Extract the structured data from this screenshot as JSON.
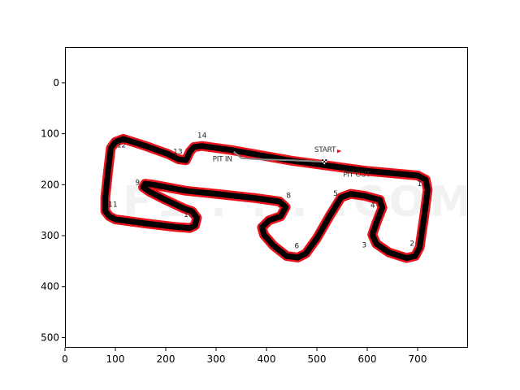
{
  "chart_data": {
    "type": "image",
    "xlim": [
      0,
      800
    ],
    "ylim": [
      520,
      -70
    ],
    "xticks": [
      "0",
      "100",
      "200",
      "300",
      "400",
      "500",
      "600",
      "700"
    ],
    "yticks": [
      "0",
      "100",
      "200",
      "300",
      "400",
      "500"
    ],
    "xtick_values": [
      0,
      100,
      200,
      300,
      400,
      500,
      600,
      700
    ],
    "ytick_values": [
      0,
      100,
      200,
      300,
      400,
      500
    ],
    "track_color": "#000000",
    "kerb_color": "#e8141c",
    "pit_lane_color": "#8a8a8a",
    "start_arrow_color": "#e8141c",
    "watermark": "F1 . . . .COM",
    "labels": {
      "start": "START",
      "pit_in": "PIT IN",
      "pit_out": "PIT OUT"
    },
    "turns": [
      {
        "label": "1",
        "x": 704,
        "y": 203
      },
      {
        "label": "2",
        "x": 689,
        "y": 320
      },
      {
        "label": "3",
        "x": 594,
        "y": 323
      },
      {
        "label": "4",
        "x": 611,
        "y": 245
      },
      {
        "label": "5",
        "x": 537,
        "y": 222
      },
      {
        "label": "6",
        "x": 460,
        "y": 325
      },
      {
        "label": "7",
        "x": 387,
        "y": 289
      },
      {
        "label": "8",
        "x": 444,
        "y": 226
      },
      {
        "label": "9",
        "x": 144,
        "y": 200
      },
      {
        "label": "10",
        "x": 245,
        "y": 263
      },
      {
        "label": "11",
        "x": 95,
        "y": 243
      },
      {
        "label": "12",
        "x": 112,
        "y": 127
      },
      {
        "label": "13",
        "x": 224,
        "y": 140
      },
      {
        "label": "14",
        "x": 272,
        "y": 108
      }
    ],
    "track": [
      [
        700,
        182
      ],
      [
        716,
        190
      ],
      [
        720,
        210
      ],
      [
        713,
        262
      ],
      [
        704,
        323
      ],
      [
        695,
        340
      ],
      [
        678,
        344
      ],
      [
        643,
        333
      ],
      [
        618,
        316
      ],
      [
        610,
        298
      ],
      [
        618,
        275
      ],
      [
        630,
        245
      ],
      [
        625,
        230
      ],
      [
        595,
        222
      ],
      [
        567,
        218
      ],
      [
        548,
        225
      ],
      [
        525,
        262
      ],
      [
        500,
        305
      ],
      [
        478,
        335
      ],
      [
        462,
        343
      ],
      [
        440,
        340
      ],
      [
        413,
        319
      ],
      [
        395,
        298
      ],
      [
        391,
        284
      ],
      [
        405,
        270
      ],
      [
        428,
        262
      ],
      [
        438,
        244
      ],
      [
        426,
        233
      ],
      [
        375,
        226
      ],
      [
        300,
        218
      ],
      [
        240,
        212
      ],
      [
        175,
        200
      ],
      [
        159,
        198
      ],
      [
        155,
        205
      ],
      [
        168,
        214
      ],
      [
        200,
        230
      ],
      [
        237,
        247
      ],
      [
        252,
        252
      ],
      [
        262,
        265
      ],
      [
        258,
        280
      ],
      [
        248,
        285
      ],
      [
        220,
        283
      ],
      [
        160,
        276
      ],
      [
        100,
        268
      ],
      [
        88,
        262
      ],
      [
        80,
        252
      ],
      [
        80,
        225
      ],
      [
        86,
        170
      ],
      [
        91,
        128
      ],
      [
        100,
        116
      ],
      [
        116,
        110
      ],
      [
        160,
        124
      ],
      [
        205,
        140
      ],
      [
        225,
        150
      ],
      [
        240,
        152
      ],
      [
        248,
        135
      ],
      [
        256,
        126
      ],
      [
        272,
        124
      ],
      [
        330,
        132
      ],
      [
        450,
        153
      ],
      [
        600,
        173
      ],
      [
        700,
        182
      ]
    ],
    "pit_lane": [
      [
        335,
        135
      ],
      [
        350,
        148
      ],
      [
        380,
        150
      ],
      [
        450,
        152
      ],
      [
        515,
        155
      ]
    ],
    "start_finish": {
      "x": 515,
      "y": 155
    }
  }
}
